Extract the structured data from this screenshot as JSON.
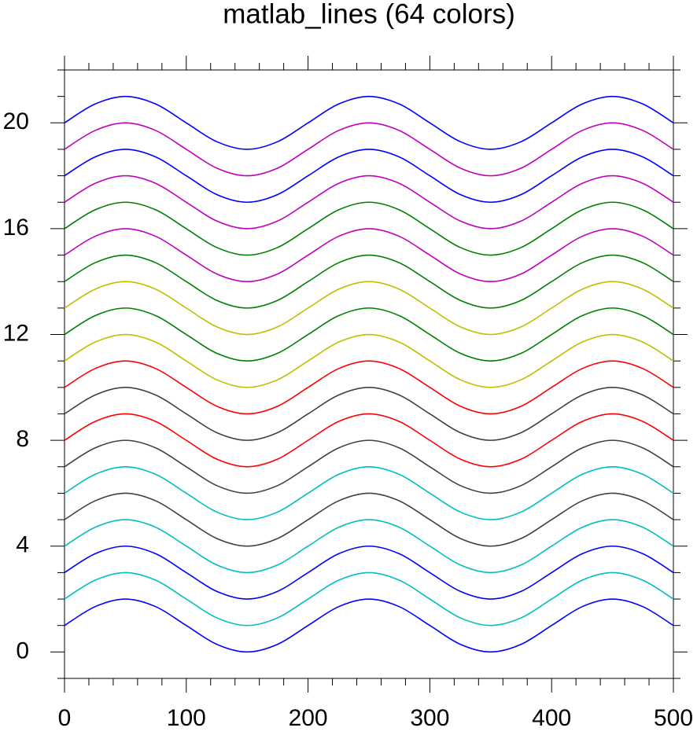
{
  "chart_data": {
    "type": "line",
    "title": "matlab_lines (64 colors)",
    "x": [
      0,
      25,
      50,
      75,
      100,
      125,
      150,
      175,
      200,
      225,
      250,
      275,
      300,
      325,
      350,
      375,
      400,
      425,
      450,
      475,
      500
    ],
    "series": [
      {
        "color": "#0000ff",
        "values": [
          1,
          1.71,
          2,
          1.71,
          1,
          0.29,
          0,
          0.29,
          1,
          1.71,
          2,
          1.71,
          1,
          0.29,
          0,
          0.29,
          1,
          1.71,
          2,
          1.71,
          1
        ]
      },
      {
        "color": "#00bfbf",
        "values": [
          2,
          2.71,
          3,
          2.71,
          2,
          1.29,
          1,
          1.29,
          2,
          2.71,
          3,
          2.71,
          2,
          1.29,
          1,
          1.29,
          2,
          2.71,
          3,
          2.71,
          2
        ]
      },
      {
        "color": "#0000ff",
        "values": [
          3,
          3.71,
          4,
          3.71,
          3,
          2.29,
          2,
          2.29,
          3,
          3.71,
          4,
          3.71,
          3,
          2.29,
          2,
          2.29,
          3,
          3.71,
          4,
          3.71,
          3
        ]
      },
      {
        "color": "#00bfbf",
        "values": [
          4,
          4.71,
          5,
          4.71,
          4,
          3.29,
          3,
          3.29,
          4,
          4.71,
          5,
          4.71,
          4,
          3.29,
          3,
          3.29,
          4,
          4.71,
          5,
          4.71,
          4
        ]
      },
      {
        "color": "#404040",
        "values": [
          5,
          5.71,
          6,
          5.71,
          5,
          4.29,
          4,
          4.29,
          5,
          5.71,
          6,
          5.71,
          5,
          4.29,
          4,
          4.29,
          5,
          5.71,
          6,
          5.71,
          5
        ]
      },
      {
        "color": "#00bfbf",
        "values": [
          6,
          6.71,
          7,
          6.71,
          6,
          5.29,
          5,
          5.29,
          6,
          6.71,
          7,
          6.71,
          6,
          5.29,
          5,
          5.29,
          6,
          6.71,
          7,
          6.71,
          6
        ]
      },
      {
        "color": "#404040",
        "values": [
          7,
          7.71,
          8,
          7.71,
          7,
          6.29,
          6,
          6.29,
          7,
          7.71,
          8,
          7.71,
          7,
          6.29,
          6,
          6.29,
          7,
          7.71,
          8,
          7.71,
          7
        ]
      },
      {
        "color": "#ff0000",
        "values": [
          8,
          8.71,
          9,
          8.71,
          8,
          7.29,
          7,
          7.29,
          8,
          8.71,
          9,
          8.71,
          8,
          7.29,
          7,
          7.29,
          8,
          8.71,
          9,
          8.71,
          8
        ]
      },
      {
        "color": "#404040",
        "values": [
          9,
          9.71,
          10,
          9.71,
          9,
          8.29,
          8,
          8.29,
          9,
          9.71,
          10,
          9.71,
          9,
          8.29,
          8,
          8.29,
          9,
          9.71,
          10,
          9.71,
          9
        ]
      },
      {
        "color": "#ff0000",
        "values": [
          10,
          10.71,
          11,
          10.71,
          10,
          9.29,
          9,
          9.29,
          10,
          10.71,
          11,
          10.71,
          10,
          9.29,
          9,
          9.29,
          10,
          10.71,
          11,
          10.71,
          10
        ]
      },
      {
        "color": "#bfbf00",
        "values": [
          11,
          11.71,
          12,
          11.71,
          11,
          10.29,
          10,
          10.29,
          11,
          11.71,
          12,
          11.71,
          11,
          10.29,
          10,
          10.29,
          11,
          11.71,
          12,
          11.71,
          11
        ]
      },
      {
        "color": "#008000",
        "values": [
          12,
          12.71,
          13,
          12.71,
          12,
          11.29,
          11,
          11.29,
          12,
          12.71,
          13,
          12.71,
          12,
          11.29,
          11,
          11.29,
          12,
          12.71,
          13,
          12.71,
          12
        ]
      },
      {
        "color": "#bfbf00",
        "values": [
          13,
          13.71,
          14,
          13.71,
          13,
          12.29,
          12,
          12.29,
          13,
          13.71,
          14,
          13.71,
          13,
          12.29,
          12,
          12.29,
          13,
          13.71,
          14,
          13.71,
          13
        ]
      },
      {
        "color": "#008000",
        "values": [
          14,
          14.71,
          15,
          14.71,
          14,
          13.29,
          13,
          13.29,
          14,
          14.71,
          15,
          14.71,
          14,
          13.29,
          13,
          13.29,
          14,
          14.71,
          15,
          14.71,
          14
        ]
      },
      {
        "color": "#bf00bf",
        "values": [
          15,
          15.71,
          16,
          15.71,
          15,
          14.29,
          14,
          14.29,
          15,
          15.71,
          16,
          15.71,
          15,
          14.29,
          14,
          14.29,
          15,
          15.71,
          16,
          15.71,
          15
        ]
      },
      {
        "color": "#008000",
        "values": [
          16,
          16.71,
          17,
          16.71,
          16,
          15.29,
          15,
          15.29,
          16,
          16.71,
          17,
          16.71,
          16,
          15.29,
          15,
          15.29,
          16,
          16.71,
          17,
          16.71,
          16
        ]
      },
      {
        "color": "#bf00bf",
        "values": [
          17,
          17.71,
          18,
          17.71,
          17,
          16.29,
          16,
          16.29,
          17,
          17.71,
          18,
          17.71,
          17,
          16.29,
          16,
          16.29,
          17,
          17.71,
          18,
          17.71,
          17
        ]
      },
      {
        "color": "#0000ff",
        "values": [
          18,
          18.71,
          19,
          18.71,
          18,
          17.29,
          17,
          17.29,
          18,
          18.71,
          19,
          18.71,
          18,
          17.29,
          17,
          17.29,
          18,
          18.71,
          19,
          18.71,
          18
        ]
      },
      {
        "color": "#bf00bf",
        "values": [
          19,
          19.71,
          20,
          19.71,
          19,
          18.29,
          18,
          18.29,
          19,
          19.71,
          20,
          19.71,
          19,
          18.29,
          18,
          18.29,
          19,
          19.71,
          20,
          19.71,
          19
        ]
      },
      {
        "color": "#0000ff",
        "values": [
          20,
          20.71,
          21,
          20.71,
          20,
          19.29,
          19,
          19.29,
          20,
          20.71,
          21,
          20.71,
          20,
          19.29,
          19,
          19.29,
          20,
          20.71,
          21,
          20.71,
          20
        ]
      }
    ],
    "xlim": [
      0,
      500
    ],
    "ylim": [
      -1,
      22
    ],
    "xticks": [
      0,
      100,
      200,
      300,
      400,
      500
    ],
    "yticks": [
      0,
      4,
      8,
      12,
      16,
      20
    ],
    "xminorticks": [
      20,
      40,
      60,
      80,
      120,
      140,
      160,
      180,
      220,
      240,
      260,
      280,
      320,
      340,
      360,
      380,
      420,
      440,
      460,
      480
    ],
    "yminorticks": [
      -1,
      1,
      2,
      3,
      5,
      6,
      7,
      9,
      10,
      11,
      13,
      14,
      15,
      17,
      18,
      19,
      21,
      22
    ]
  }
}
